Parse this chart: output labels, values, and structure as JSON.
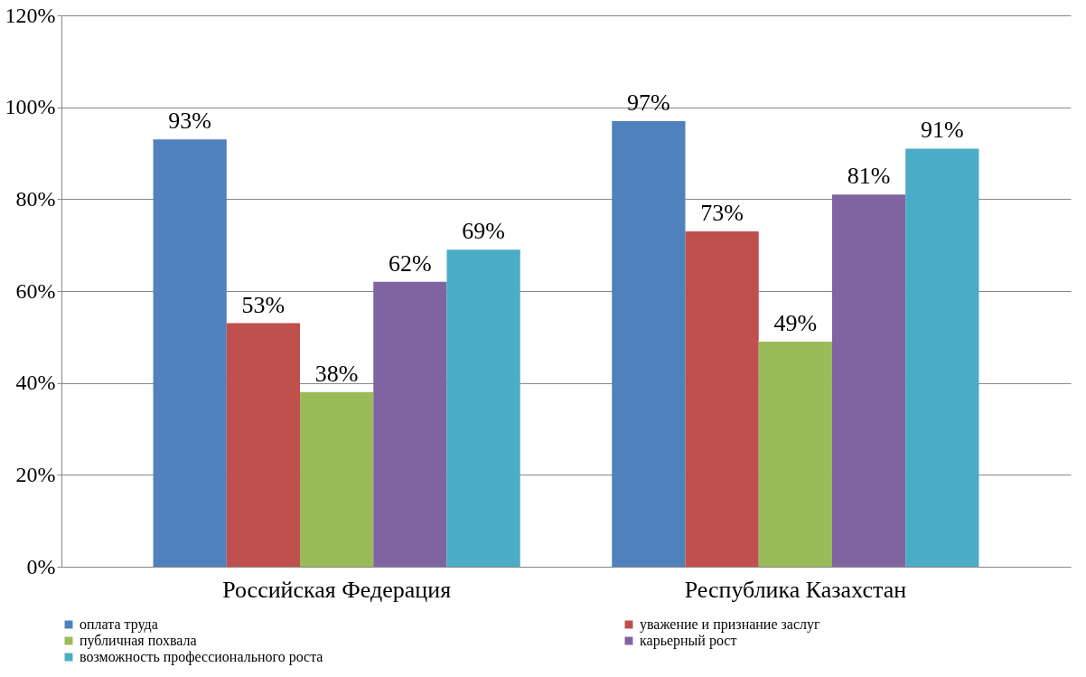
{
  "chart_data": {
    "type": "bar",
    "categories": [
      "Российская Федерация",
      "Республика Казахстан"
    ],
    "series": [
      {
        "name": "оплата труда",
        "color": "#4f81bd",
        "values": [
          93,
          97
        ],
        "value_labels": [
          "93%",
          "97%"
        ]
      },
      {
        "name": "уважение и признание заслуг",
        "color": "#c0504d",
        "values": [
          53,
          73
        ],
        "value_labels": [
          "53%",
          "73%"
        ]
      },
      {
        "name": "публичная похвала",
        "color": "#9bbb59",
        "values": [
          38,
          49
        ],
        "value_labels": [
          "38%",
          "49%"
        ]
      },
      {
        "name": "карьерный рост",
        "color": "#8064a2",
        "values": [
          62,
          81
        ],
        "value_labels": [
          "62%",
          "81%"
        ]
      },
      {
        "name": "возможность профессионального роста",
        "color": "#4bacc6",
        "values": [
          69,
          91
        ],
        "value_labels": [
          "69%",
          "91%"
        ]
      }
    ],
    "ylim": [
      0,
      120
    ],
    "yticks": [
      {
        "value": 0,
        "label": "0%"
      },
      {
        "value": 20,
        "label": "20%"
      },
      {
        "value": 40,
        "label": "40%"
      },
      {
        "value": 60,
        "label": "60%"
      },
      {
        "value": 80,
        "label": "80%"
      },
      {
        "value": 100,
        "label": "100%"
      },
      {
        "value": 120,
        "label": "120%"
      }
    ],
    "grid": "y",
    "legend": "bottom"
  }
}
